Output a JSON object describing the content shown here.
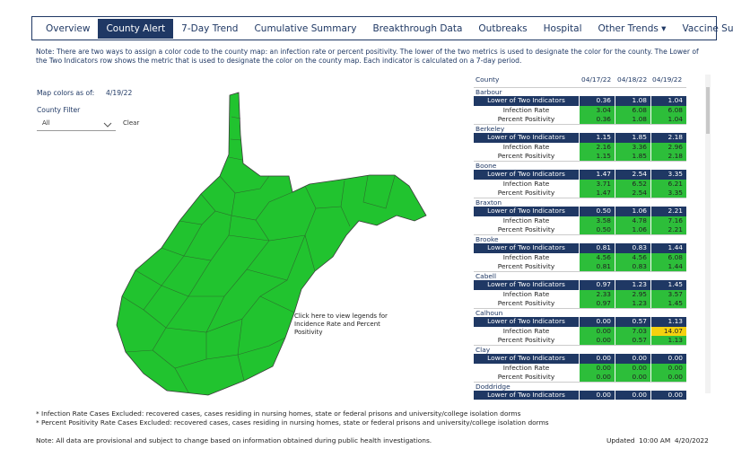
{
  "nav": {
    "tabs": [
      "Overview",
      "County Alert",
      "7-Day Trend",
      "Cumulative Summary",
      "Breakthrough Data",
      "Outbreaks",
      "Hospital",
      "Other Trends ▾",
      "Vaccine Summary"
    ]
  },
  "note": "Note: There are two ways to assign a color code to the county map: an infection rate or percent positivity. The lower of the two metrics is used to designate the color for the county. The Lower of the Two Indicators row shows the metric that is used to designate the color on the county map. Each indicator is calculated on a 7-day period.",
  "map": {
    "as_of_label": "Map colors as of:",
    "as_of": "4/19/22",
    "filter_label": "County Filter",
    "filter_value": "All",
    "clear": "Clear",
    "legend_link": "Click here to view legends for Incidence Rate and Percent Positivity"
  },
  "table": {
    "header": [
      "County",
      "04/17/22",
      "04/18/22",
      "04/19/22"
    ],
    "cell_color": "#2dbe3a",
    "counties": [
      {
        "name": "Barbour",
        "rows": [
          {
            "label": "Lower of Two Indicators",
            "values": [
              "0.36",
              "1.08",
              "1.04"
            ]
          },
          {
            "label": "Infection Rate",
            "values": [
              "3.04",
              "6.08",
              "6.08"
            ]
          },
          {
            "label": "Percent Positivity",
            "values": [
              "0.36",
              "1.08",
              "1.04"
            ]
          }
        ]
      },
      {
        "name": "Berkeley",
        "rows": [
          {
            "label": "Lower of Two Indicators",
            "values": [
              "1.15",
              "1.85",
              "2.18"
            ]
          },
          {
            "label": "Infection Rate",
            "values": [
              "2.16",
              "3.36",
              "2.96"
            ]
          },
          {
            "label": "Percent Positivity",
            "values": [
              "1.15",
              "1.85",
              "2.18"
            ]
          }
        ]
      },
      {
        "name": "Boone",
        "rows": [
          {
            "label": "Lower of Two Indicators",
            "values": [
              "1.47",
              "2.54",
              "3.35"
            ]
          },
          {
            "label": "Infection Rate",
            "values": [
              "3.71",
              "6.52",
              "6.21"
            ]
          },
          {
            "label": "Percent Positivity",
            "values": [
              "1.47",
              "2.54",
              "3.35"
            ]
          }
        ]
      },
      {
        "name": "Braxton",
        "rows": [
          {
            "label": "Lower of Two Indicators",
            "values": [
              "0.50",
              "1.06",
              "2.21"
            ]
          },
          {
            "label": "Infection Rate",
            "values": [
              "3.58",
              "4.78",
              "7.16"
            ]
          },
          {
            "label": "Percent Positivity",
            "values": [
              "0.50",
              "1.06",
              "2.21"
            ]
          }
        ]
      },
      {
        "name": "Brooke",
        "rows": [
          {
            "label": "Lower of Two Indicators",
            "values": [
              "0.81",
              "0.83",
              "1.44"
            ]
          },
          {
            "label": "Infection Rate",
            "values": [
              "4.56",
              "4.56",
              "6.08"
            ]
          },
          {
            "label": "Percent Positivity",
            "values": [
              "0.81",
              "0.83",
              "1.44"
            ]
          }
        ]
      },
      {
        "name": "Cabell",
        "rows": [
          {
            "label": "Lower of Two Indicators",
            "values": [
              "0.97",
              "1.23",
              "1.45"
            ]
          },
          {
            "label": "Infection Rate",
            "values": [
              "2.33",
              "2.95",
              "3.57"
            ]
          },
          {
            "label": "Percent Positivity",
            "values": [
              "0.97",
              "1.23",
              "1.45"
            ]
          }
        ]
      },
      {
        "name": "Calhoun",
        "rows": [
          {
            "label": "Lower of Two Indicators",
            "values": [
              "0.00",
              "0.57",
              "1.13"
            ]
          },
          {
            "label": "Infection Rate",
            "values": [
              "0.00",
              "7.03",
              "14.07"
            ],
            "colors": [
              "#2dbe3a",
              "#2dbe3a",
              "#f5d10f"
            ]
          },
          {
            "label": "Percent Positivity",
            "values": [
              "0.00",
              "0.57",
              "1.13"
            ]
          }
        ]
      },
      {
        "name": "Clay",
        "rows": [
          {
            "label": "Lower of Two Indicators",
            "values": [
              "0.00",
              "0.00",
              "0.00"
            ]
          },
          {
            "label": "Infection Rate",
            "values": [
              "0.00",
              "0.00",
              "0.00"
            ]
          },
          {
            "label": "Percent Positivity",
            "values": [
              "0.00",
              "0.00",
              "0.00"
            ]
          }
        ]
      },
      {
        "name": "Doddridge",
        "rows": [
          {
            "label": "Lower of Two Indicators",
            "values": [
              "0.00",
              "0.00",
              "0.00"
            ]
          }
        ]
      }
    ]
  },
  "footnotes": [
    "* Infection Rate Cases Excluded: recovered cases, cases residing in nursing homes, state or federal prisons and university/college isolation dorms",
    "* Percent Positivity Rate Cases Excluded: recovered cases, cases residing in nursing homes, state or federal prisons and university/college isolation dorms"
  ],
  "footer": {
    "note": "Note: All data are provisional and subject to change based on information obtained during public health investigations.",
    "updated": "Updated  10:00 AM  4/20/2022"
  }
}
